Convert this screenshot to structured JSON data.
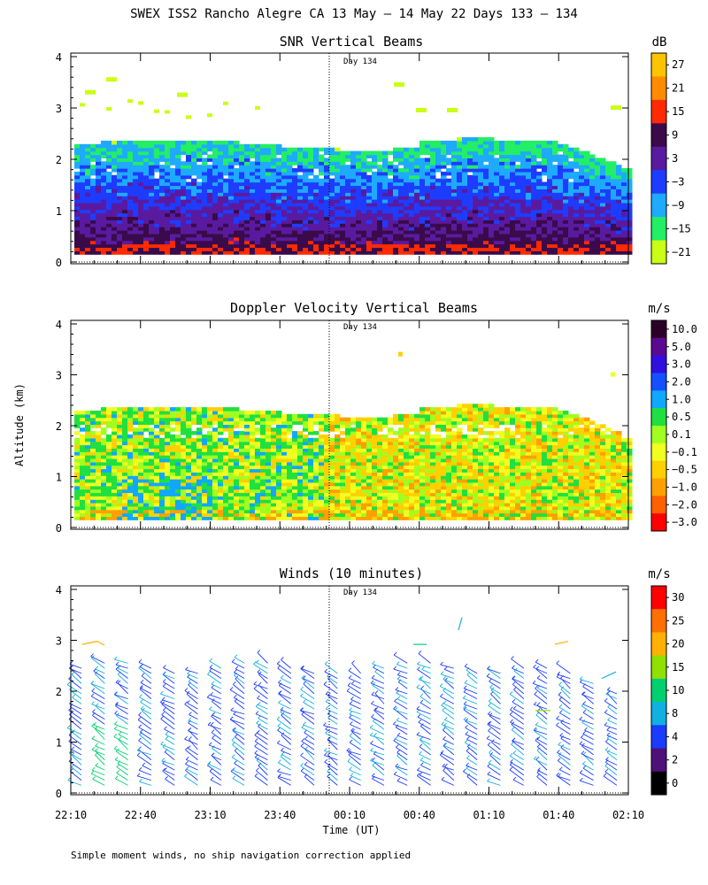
{
  "title": "SWEX ISS2 Rancho Alegre CA  13 May – 14 May 22 Days 133 – 134",
  "footnote": "Simple moment winds, no ship navigation correction applied",
  "chart_data": [
    {
      "type": "heatmap",
      "title": "SNR Vertical Beams",
      "ylabel": "Altitude (km)",
      "ylim": [
        0,
        4
      ],
      "y_ticks": [
        "0",
        "1",
        "2",
        "3",
        "4"
      ],
      "day_marker": "Day 134",
      "colorbar_unit": "dB",
      "colorbar_labels": [
        "27",
        "21",
        "15",
        "9",
        "3",
        "−3",
        "−9",
        "−15",
        "−21"
      ],
      "colorbar_colors": [
        "#ffc400",
        "#ff8c00",
        "#ff2a00",
        "#3a0a4a",
        "#5a1aa0",
        "#1e3cff",
        "#1eaaff",
        "#22ee66",
        "#c8ff14"
      ]
    },
    {
      "type": "heatmap",
      "title": "Doppler Velocity Vertical Beams",
      "ylabel": "Altitude (km)",
      "ylim": [
        0,
        4
      ],
      "y_ticks": [
        "0",
        "1",
        "2",
        "3",
        "4"
      ],
      "day_marker": "Day 134",
      "colorbar_unit": "m/s",
      "colorbar_labels": [
        "10.0",
        "5.0",
        "3.0",
        "2.0",
        "1.0",
        "0.5",
        "0.1",
        "−0.1",
        "−0.5",
        "−1.0",
        "−2.0",
        "−3.0"
      ],
      "colorbar_colors": [
        "#2a0028",
        "#5a0a90",
        "#3010e0",
        "#1450ff",
        "#10a8ff",
        "#20e040",
        "#a0ff20",
        "#f0ff20",
        "#ffd000",
        "#ffa000",
        "#ff6000",
        "#ff0000"
      ]
    },
    {
      "type": "scatter",
      "title": "Winds (10 minutes)",
      "ylabel": "Altitude (km)",
      "xlabel": "Time (UT)",
      "ylim": [
        0,
        4
      ],
      "y_ticks": [
        "0",
        "1",
        "2",
        "3",
        "4"
      ],
      "x_ticks": [
        "22:10",
        "22:40",
        "23:10",
        "23:40",
        "00:10",
        "00:40",
        "01:10",
        "01:40",
        "02:10"
      ],
      "day_marker": "Day 134",
      "colorbar_unit": "m/s",
      "colorbar_labels": [
        "30",
        "25",
        "20",
        "15",
        "10",
        "8",
        "4",
        "2",
        "0"
      ],
      "colorbar_colors": [
        "#ff0000",
        "#ff7000",
        "#ffb000",
        "#90e000",
        "#00d070",
        "#10b0e0",
        "#1a3cff",
        "#50107a",
        "#000000"
      ],
      "wind_profiles": 24
    }
  ]
}
